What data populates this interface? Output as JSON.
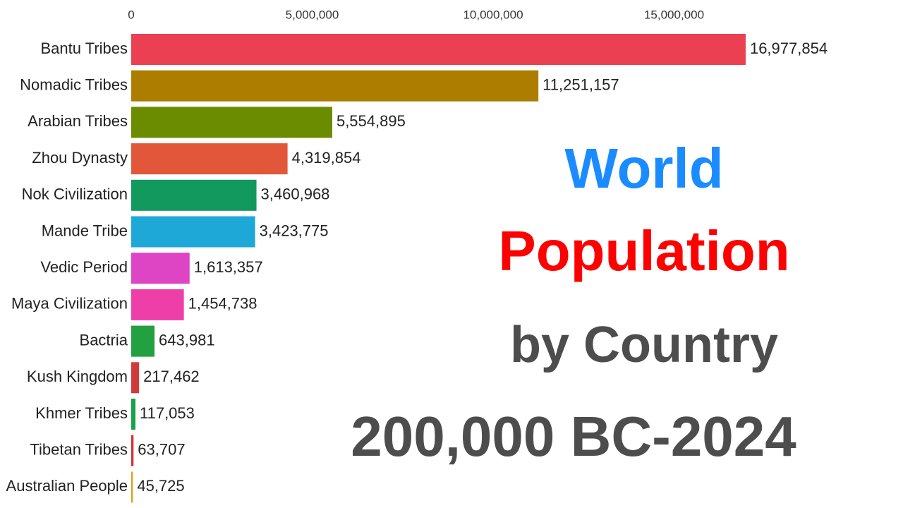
{
  "chart_data": {
    "type": "bar",
    "orientation": "horizontal",
    "title": [
      "World",
      "Population",
      "by Country",
      "200,000 BC-2024"
    ],
    "title_colors": [
      "#1a8cff",
      "#ff0000",
      "#4d4d4d",
      "#4d4d4d"
    ],
    "categories": [
      "Bantu Tribes",
      "Nomadic Tribes",
      "Arabian Tribes",
      "Zhou Dynasty",
      "Nok Civilization",
      "Mande Tribe",
      "Vedic Period",
      "Maya Civilization",
      "Bactria",
      "Kush Kingdom",
      "Khmer Tribes",
      "Tibetan Tribes",
      "Australian People"
    ],
    "values": [
      16977854,
      11251157,
      5554895,
      4319854,
      3460968,
      3423775,
      1613357,
      1454738,
      643981,
      217462,
      117053,
      63707,
      45725
    ],
    "value_labels": [
      "16,977,854",
      "11,251,157",
      "5,554,895",
      "4,319,854",
      "3,460,968",
      "3,423,775",
      "1,613,357",
      "1,454,738",
      "643,981",
      "217,462",
      "117,053",
      "63,707",
      "45,725"
    ],
    "colors": [
      "#ea4052",
      "#ad7d00",
      "#6c8c00",
      "#e2573a",
      "#12995e",
      "#1ea8d8",
      "#de45c4",
      "#ee3fa8",
      "#23a040",
      "#cf3b3b",
      "#16a34a",
      "#d23232",
      "#e0a020"
    ],
    "xlim": [
      0,
      20000000
    ],
    "xticks": [
      0,
      {
        "value": 5000000,
        "label": "5,000,000"
      },
      {
        "value": 10000000,
        "label": "10,000,000"
      },
      {
        "value": 15000000,
        "label": "15,000,000"
      }
    ],
    "grid": false
  }
}
